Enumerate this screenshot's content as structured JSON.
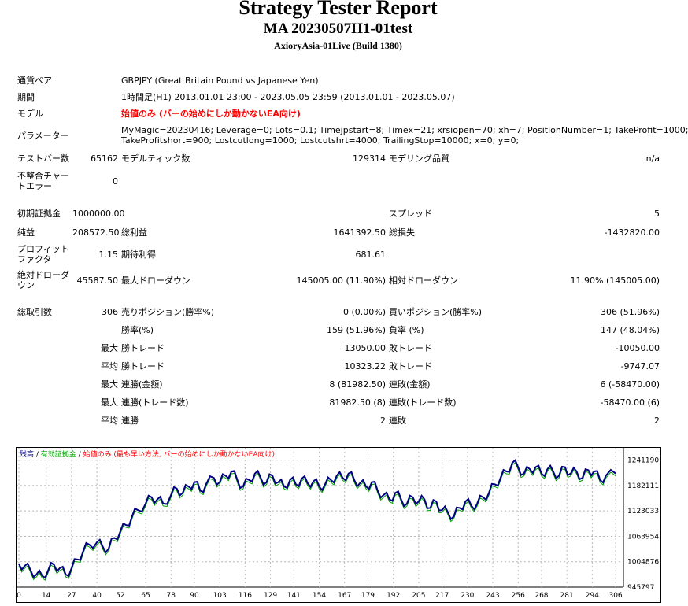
{
  "header": {
    "title": "Strategy Tester Report",
    "subtitle": "MA 20230507H1-01test",
    "broker": "AxioryAsia-01Live (Build 1380)"
  },
  "info": {
    "symbol_label": "通貨ペア",
    "symbol_value": "GBPJPY (Great Britain Pound vs Japanese Yen)",
    "period_label": "期間",
    "period_value": "1時間足(H1) 2013.01.01 23:00 - 2023.05.05 23:59 (2013.01.01 - 2023.05.07)",
    "model_label": "モデル",
    "model_value": "始値のみ (バーの始めにしか動かないEA向け)",
    "params_label": "パラメーター",
    "params_line1": "MyMagic=20230416; Leverage=0; Lots=0.1; Timejpstart=8; Timex=21; xrsiopen=70; xh=7; PositionNumber=1; TakeProfit=1000;",
    "params_line2": "TakeProfitshort=900; Lostcutlong=1000; Lostcutshrt=4000; TrailingStop=10000; x=0; y=0;"
  },
  "stats": {
    "bars_label": "テストバー数",
    "bars_value": "65162",
    "ticks_label": "モデルティック数",
    "ticks_value": "129314",
    "quality_label": "モデリング品質",
    "quality_value": "n/a",
    "mismatch_label": "不整合チャートエラー",
    "mismatch_value": "0",
    "deposit_label": "初期証拠金",
    "deposit_value": "1000000.00",
    "spread_label": "スプレッド",
    "spread_value": "5",
    "net_label": "純益",
    "net_value": "208572.50",
    "gross_profit_label": "総利益",
    "gross_profit_value": "1641392.50",
    "gross_loss_label": "総損失",
    "gross_loss_value": "-1432820.00",
    "pf_label": "プロフィットファクタ",
    "pf_value": "1.15",
    "expected_label": "期待利得",
    "expected_value": "681.61",
    "abs_dd_label": "絶対ドローダウン",
    "abs_dd_value": "45587.50",
    "max_dd_label": "最大ドローダウン",
    "max_dd_value": "145005.00 (11.90%)",
    "rel_dd_label": "相対ドローダウン",
    "rel_dd_value": "11.90% (145005.00)",
    "trades_label": "総取引数",
    "trades_value": "306",
    "short_label": "売りポジション(勝率%)",
    "short_value": "0 (0.00%)",
    "long_label": "買いポジション(勝率%)",
    "long_value": "306 (51.96%)",
    "winrate_label": "勝率(%)",
    "winrate_value": "159 (51.96%)",
    "lossrate_label": "負率 (%)",
    "lossrate_value": "147 (48.04%)",
    "max_label": "最大",
    "avg_label": "平均",
    "largest_win_label": "勝トレード",
    "largest_win_value": "13050.00",
    "largest_loss_label": "敗トレード",
    "largest_loss_value": "-10050.00",
    "avg_win_label": "勝トレード",
    "avg_win_value": "10323.22",
    "avg_loss_label": "敗トレード",
    "avg_loss_value": "-9747.07",
    "cons_win_amt_label": "連勝(金額)",
    "cons_win_amt_value": "8 (81982.50)",
    "cons_loss_amt_label": "連敗(金額)",
    "cons_loss_amt_value": "6 (-58470.00)",
    "cons_win_cnt_label": "連勝(トレード数)",
    "cons_win_cnt_value": "81982.50 (8)",
    "cons_loss_cnt_label": "連敗(トレード数)",
    "cons_loss_cnt_value": "-58470.00 (6)",
    "avg_cons_win_label": "連勝",
    "avg_cons_win_value": "2",
    "avg_cons_loss_label": "連敗",
    "avg_cons_loss_value": "2"
  },
  "colors": {
    "balance": "#000080",
    "equity": "#00a000",
    "model": "#ff0000",
    "grid": "#b8b8b8",
    "axis": "#000000"
  },
  "chart_data": {
    "type": "line",
    "legend": {
      "balance": "残高",
      "sep1": " / ",
      "equity": "有効証拠金",
      "sep2": " / ",
      "model": "始値のみ (最も早い方法, バーの始めにしか動かないEA向け)"
    },
    "xlim": [
      0,
      310
    ],
    "ylim": [
      945797,
      1268000
    ],
    "xticks": [
      0,
      14,
      27,
      40,
      52,
      65,
      78,
      90,
      103,
      116,
      129,
      141,
      154,
      167,
      179,
      192,
      205,
      217,
      230,
      243,
      256,
      268,
      281,
      294,
      306
    ],
    "yticks": [
      945797,
      1004876,
      1063954,
      1123033,
      1182111,
      1241190
    ],
    "x": [
      0,
      3,
      6,
      9,
      12,
      15,
      18,
      21,
      24,
      27,
      30,
      33,
      36,
      40,
      43,
      46,
      49,
      52,
      55,
      58,
      61,
      65,
      68,
      71,
      74,
      78,
      81,
      84,
      87,
      90,
      93,
      96,
      100,
      103,
      106,
      109,
      112,
      115,
      118,
      121,
      124,
      127,
      130,
      133,
      136,
      139,
      142,
      145,
      148,
      151,
      154,
      157,
      160,
      163,
      166,
      169,
      172,
      175,
      178,
      181,
      184,
      187,
      190,
      193,
      196,
      199,
      202,
      205,
      208,
      211,
      214,
      217,
      220,
      223,
      226,
      229,
      232,
      235,
      238,
      241,
      244,
      247,
      250,
      253,
      256,
      259,
      262,
      265,
      268,
      271,
      274,
      277,
      280,
      283,
      286,
      289,
      292,
      295,
      298,
      301,
      306
    ],
    "balance": [
      1000000,
      995000,
      985000,
      975000,
      972000,
      985000,
      998000,
      990000,
      975000,
      990000,
      1010000,
      1030000,
      1045000,
      1050000,
      1040000,
      1035000,
      1060000,
      1075000,
      1090000,
      1110000,
      1125000,
      1140000,
      1155000,
      1150000,
      1140000,
      1160000,
      1175000,
      1165000,
      1180000,
      1190000,
      1170000,
      1185000,
      1200000,
      1190000,
      1205000,
      1215000,
      1195000,
      1180000,
      1195000,
      1210000,
      1200000,
      1190000,
      1205000,
      1190000,
      1180000,
      1195000,
      1185000,
      1198000,
      1188000,
      1192000,
      1180000,
      1185000,
      1195000,
      1205000,
      1200000,
      1210000,
      1195000,
      1188000,
      1180000,
      1190000,
      1170000,
      1160000,
      1150000,
      1165000,
      1150000,
      1140000,
      1155000,
      1145000,
      1150000,
      1130000,
      1145000,
      1125000,
      1120000,
      1110000,
      1130000,
      1145000,
      1135000,
      1140000,
      1155000,
      1165000,
      1185000,
      1200000,
      1215000,
      1235000,
      1225000,
      1210000,
      1220000,
      1225000,
      1210000,
      1220000,
      1215000,
      1205000,
      1225000,
      1210000,
      1215000,
      1200000,
      1218000,
      1215000,
      1195000,
      1205000,
      1210000
    ]
  }
}
